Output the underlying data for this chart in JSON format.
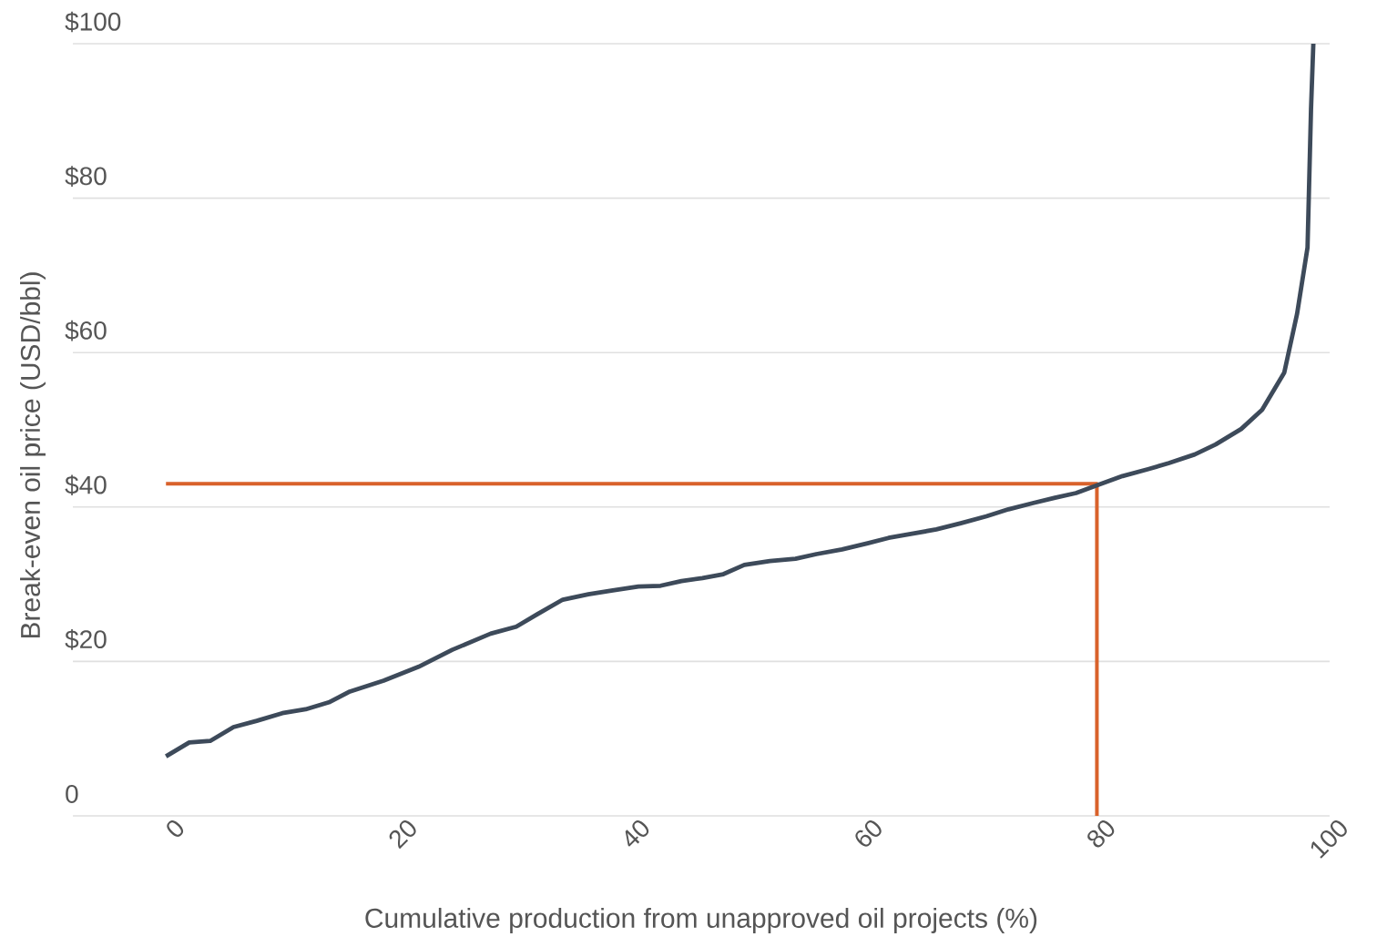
{
  "chart_data": {
    "type": "line",
    "xlabel": "Cumulative production from unapproved oil projects (%)",
    "ylabel": "Break-even oil price (USD/bbl)",
    "xlim": [
      -8,
      100
    ],
    "ylim": [
      0,
      100
    ],
    "xticks": [
      0,
      20,
      40,
      60,
      80,
      100
    ],
    "yticks": [
      0,
      {
        "value": 20,
        "label": "$20"
      },
      {
        "value": 40,
        "label": "$40"
      },
      {
        "value": 60,
        "label": "$60"
      },
      {
        "value": 80,
        "label": "$80"
      },
      {
        "value": 100,
        "label": "$100"
      }
    ],
    "grid": "y",
    "marker": "none",
    "line_style": "solid",
    "series": [
      {
        "color": "#d9622b",
        "x": [
          0,
          80,
          80
        ],
        "values": [
          43,
          43,
          0
        ]
      },
      {
        "color": "#3d4a5a",
        "x": [
          0,
          2.0,
          3.8,
          5.8,
          7.8,
          10.0,
          12.0,
          14.0,
          15.8,
          18.7,
          21.7,
          24.6,
          27.9,
          30.1,
          31.9,
          34.1,
          36.3,
          38.4,
          40.6,
          42.5,
          44.3,
          46.1,
          47.9,
          49.7,
          51.9,
          54.1,
          55.9,
          58.1,
          60.3,
          62.1,
          64.0,
          66.2,
          68.3,
          70.5,
          72.4,
          74.5,
          76.4,
          78.2,
          80.0,
          82.2,
          84.4,
          86.2,
          88.4,
          90.2,
          92.4,
          94.2,
          96.1,
          97.2,
          98.1,
          98.4,
          98.6
        ],
        "values": [
          7.7,
          9.5,
          9.7,
          11.5,
          12.3,
          13.3,
          13.8,
          14.7,
          16.1,
          17.5,
          19.3,
          21.5,
          23.6,
          24.5,
          26.1,
          28.0,
          28.7,
          29.2,
          29.7,
          29.8,
          30.4,
          30.8,
          31.3,
          32.5,
          33.0,
          33.3,
          33.9,
          34.5,
          35.3,
          36.0,
          36.5,
          37.1,
          37.9,
          38.8,
          39.7,
          40.5,
          41.2,
          41.8,
          42.8,
          44.0,
          44.9,
          45.7,
          46.8,
          48.1,
          50.1,
          52.6,
          57.4,
          65.0,
          73.6,
          91.5,
          100
        ]
      }
    ]
  }
}
